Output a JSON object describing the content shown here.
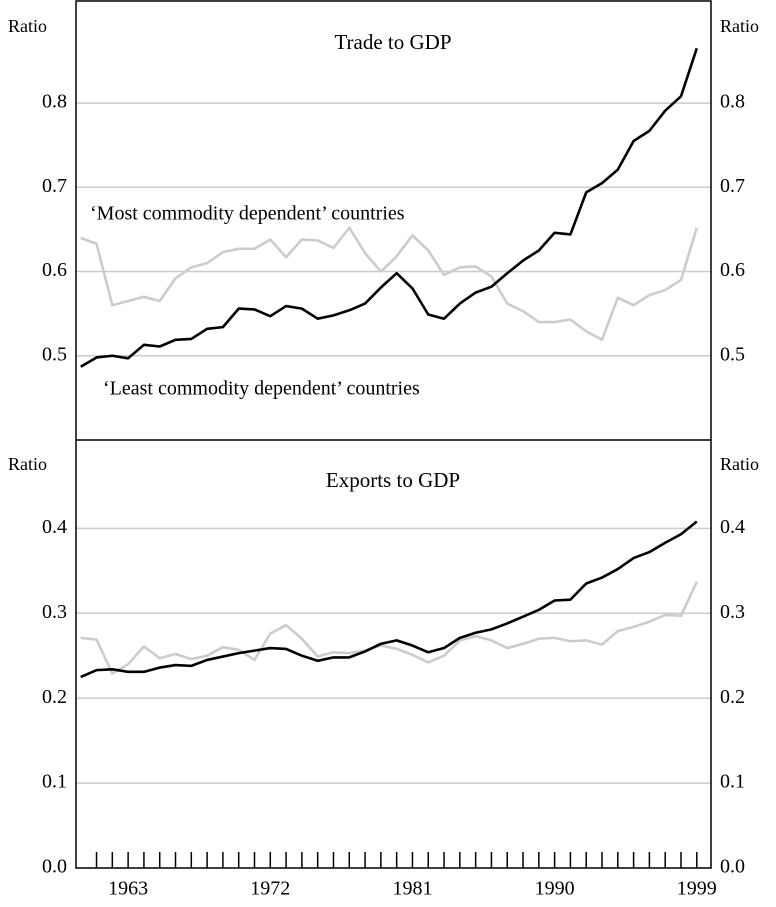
{
  "chart_data": [
    {
      "type": "line",
      "title": "Trade to GDP",
      "ylabel": "Ratio",
      "y2label": "Ratio",
      "x": [
        1960,
        1961,
        1962,
        1963,
        1964,
        1965,
        1966,
        1967,
        1968,
        1969,
        1970,
        1971,
        1972,
        1973,
        1974,
        1975,
        1976,
        1977,
        1978,
        1979,
        1980,
        1981,
        1982,
        1983,
        1984,
        1985,
        1986,
        1987,
        1988,
        1989,
        1990,
        1991,
        1992,
        1993,
        1994,
        1995,
        1996,
        1997,
        1998,
        1999
      ],
      "xlim": [
        1959.7,
        1999.9
      ],
      "ylim": [
        0.4,
        0.92
      ],
      "yticks": [
        0.5,
        0.6,
        0.7,
        0.8
      ],
      "y2lim": [
        0.4,
        0.92
      ],
      "y2ticks": [
        0.5,
        0.6,
        0.7,
        0.8
      ],
      "grid": true,
      "series": [
        {
          "name": "‘Most commodity dependent’ countries",
          "color": "#cccccc",
          "values": [
            0.64,
            0.633,
            0.56,
            0.565,
            0.57,
            0.565,
            0.592,
            0.605,
            0.61,
            0.623,
            0.627,
            0.627,
            0.638,
            0.617,
            0.638,
            0.637,
            0.628,
            0.652,
            0.622,
            0.6,
            0.618,
            0.643,
            0.625,
            0.596,
            0.605,
            0.606,
            0.594,
            0.562,
            0.553,
            0.54,
            0.54,
            0.543,
            0.529,
            0.519,
            0.569,
            0.56,
            0.572,
            0.578,
            0.59,
            0.652
          ]
        },
        {
          "name": "‘Least commodity dependent’ countries",
          "color": "#000000",
          "values": [
            0.487,
            0.498,
            0.5,
            0.497,
            0.513,
            0.511,
            0.519,
            0.52,
            0.532,
            0.534,
            0.556,
            0.555,
            0.547,
            0.559,
            0.556,
            0.544,
            0.548,
            0.554,
            0.562,
            0.581,
            0.598,
            0.58,
            0.549,
            0.544,
            0.562,
            0.575,
            0.582,
            0.598,
            0.613,
            0.625,
            0.646,
            0.644,
            0.694,
            0.705,
            0.721,
            0.755,
            0.767,
            0.791,
            0.808,
            0.865
          ]
        }
      ]
    },
    {
      "type": "line",
      "title": "Exports to GDP",
      "ylabel": "Ratio",
      "y2label": "Ratio",
      "x": [
        1960,
        1961,
        1962,
        1963,
        1964,
        1965,
        1966,
        1967,
        1968,
        1969,
        1970,
        1971,
        1972,
        1973,
        1974,
        1975,
        1976,
        1977,
        1978,
        1979,
        1980,
        1981,
        1982,
        1983,
        1984,
        1985,
        1986,
        1987,
        1988,
        1989,
        1990,
        1991,
        1992,
        1993,
        1994,
        1995,
        1996,
        1997,
        1998,
        1999
      ],
      "xlim": [
        1959.7,
        1999.9
      ],
      "xticks": [
        1963,
        1972,
        1981,
        1990,
        1999
      ],
      "ylim": [
        0,
        0.504
      ],
      "yticks": [
        {
          "value": 0,
          "label": "0.0"
        },
        0.1,
        0.2,
        0.3,
        0.4
      ],
      "y2lim": [
        0,
        0.504
      ],
      "y2ticks": [
        {
          "value": 0,
          "label": "0.0"
        },
        0.1,
        0.2,
        0.3,
        0.4
      ],
      "grid": true,
      "series": [
        {
          "color": "#cccccc",
          "values": [
            0.271,
            0.269,
            0.229,
            0.24,
            0.261,
            0.247,
            0.252,
            0.246,
            0.25,
            0.26,
            0.257,
            0.245,
            0.276,
            0.286,
            0.27,
            0.249,
            0.254,
            0.253,
            0.256,
            0.262,
            0.258,
            0.251,
            0.242,
            0.25,
            0.268,
            0.273,
            0.268,
            0.259,
            0.264,
            0.27,
            0.271,
            0.267,
            0.268,
            0.263,
            0.279,
            0.284,
            0.29,
            0.298,
            0.297,
            0.337
          ]
        },
        {
          "color": "#000000",
          "values": [
            0.225,
            0.233,
            0.234,
            0.231,
            0.231,
            0.236,
            0.239,
            0.238,
            0.245,
            0.249,
            0.253,
            0.256,
            0.259,
            0.258,
            0.25,
            0.244,
            0.248,
            0.248,
            0.255,
            0.264,
            0.268,
            0.262,
            0.254,
            0.259,
            0.271,
            0.277,
            0.281,
            0.288,
            0.296,
            0.304,
            0.315,
            0.316,
            0.335,
            0.342,
            0.352,
            0.365,
            0.372,
            0.383,
            0.393,
            0.408
          ]
        }
      ]
    }
  ]
}
